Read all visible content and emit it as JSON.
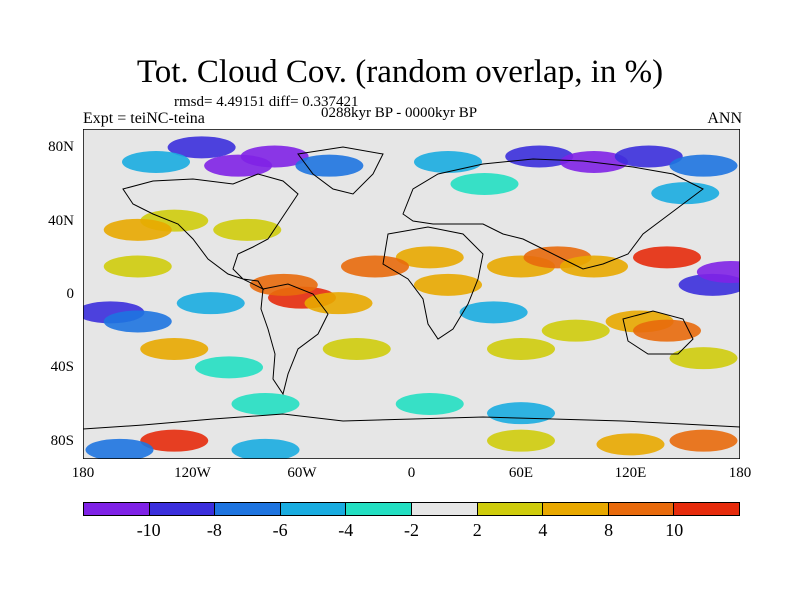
{
  "figure": {
    "title": "Tot. Cloud Cov. (random overlap, in %)",
    "stats": "rmsd= 4.49151 diff= 0.337421",
    "experiment": "Expt = teiNC-teina",
    "period": "0288kyr BP - 0000kyr BP",
    "season": "ANN"
  },
  "map": {
    "lat_ticks": [
      "80N",
      "40N",
      "0",
      "40S",
      "80S"
    ],
    "lon_ticks": [
      "180",
      "120W",
      "60W",
      "0",
      "60E",
      "120E",
      "180"
    ]
  },
  "colorbar": {
    "colors": [
      "#7f22e6",
      "#3b2fdc",
      "#1e74e0",
      "#19ace0",
      "#23dfc2",
      "#e6e6e6",
      "#cfcc0c",
      "#e8a800",
      "#e86a0c",
      "#e62b0c"
    ],
    "labels": [
      "-10",
      "-8",
      "-6",
      "-4",
      "-2",
      "2",
      "4",
      "8",
      "10"
    ]
  },
  "anomaly_patches": [
    {
      "lon": -95,
      "lat": 70,
      "level": 0
    },
    {
      "lon": -115,
      "lat": 80,
      "level": 1
    },
    {
      "lon": -75,
      "lat": 75,
      "level": 0
    },
    {
      "lon": -45,
      "lat": 70,
      "level": 2
    },
    {
      "lon": -140,
      "lat": 72,
      "level": 3
    },
    {
      "lon": 20,
      "lat": 72,
      "level": 3
    },
    {
      "lon": 70,
      "lat": 75,
      "level": 1
    },
    {
      "lon": 100,
      "lat": 72,
      "level": 0
    },
    {
      "lon": 130,
      "lat": 75,
      "level": 1
    },
    {
      "lon": 160,
      "lat": 70,
      "level": 2
    },
    {
      "lon": 40,
      "lat": 60,
      "level": 4
    },
    {
      "lon": 150,
      "lat": 55,
      "level": 3
    },
    {
      "lon": -130,
      "lat": 40,
      "level": 6
    },
    {
      "lon": -150,
      "lat": 35,
      "level": 7
    },
    {
      "lon": -90,
      "lat": 35,
      "level": 6
    },
    {
      "lon": 10,
      "lat": 20,
      "level": 7
    },
    {
      "lon": -20,
      "lat": 15,
      "level": 8
    },
    {
      "lon": -60,
      "lat": -2,
      "level": 9
    },
    {
      "lon": -70,
      "lat": 5,
      "level": 8
    },
    {
      "lon": -40,
      "lat": -5,
      "level": 7
    },
    {
      "lon": 20,
      "lat": 5,
      "level": 7
    },
    {
      "lon": 60,
      "lat": 15,
      "level": 7
    },
    {
      "lon": 80,
      "lat": 20,
      "level": 8
    },
    {
      "lon": 100,
      "lat": 15,
      "level": 7
    },
    {
      "lon": 140,
      "lat": 20,
      "level": 9
    },
    {
      "lon": 165,
      "lat": 5,
      "level": 1
    },
    {
      "lon": 175,
      "lat": 12,
      "level": 0
    },
    {
      "lon": -165,
      "lat": -10,
      "level": 1
    },
    {
      "lon": -150,
      "lat": -15,
      "level": 2
    },
    {
      "lon": -110,
      "lat": -5,
      "level": 3
    },
    {
      "lon": -150,
      "lat": 15,
      "level": 6
    },
    {
      "lon": 45,
      "lat": -10,
      "level": 3
    },
    {
      "lon": 125,
      "lat": -15,
      "level": 7
    },
    {
      "lon": 140,
      "lat": -20,
      "level": 8
    },
    {
      "lon": -130,
      "lat": -30,
      "level": 7
    },
    {
      "lon": -30,
      "lat": -30,
      "level": 6
    },
    {
      "lon": 60,
      "lat": -30,
      "level": 6
    },
    {
      "lon": 90,
      "lat": -20,
      "level": 6
    },
    {
      "lon": 160,
      "lat": -35,
      "level": 6
    },
    {
      "lon": -100,
      "lat": -40,
      "level": 4
    },
    {
      "lon": -80,
      "lat": -60,
      "level": 4
    },
    {
      "lon": 10,
      "lat": -60,
      "level": 4
    },
    {
      "lon": 60,
      "lat": -65,
      "level": 3
    },
    {
      "lon": -130,
      "lat": -80,
      "level": 9
    },
    {
      "lon": -160,
      "lat": -85,
      "level": 2
    },
    {
      "lon": -80,
      "lat": -85,
      "level": 3
    },
    {
      "lon": 60,
      "lat": -80,
      "level": 6
    },
    {
      "lon": 120,
      "lat": -82,
      "level": 7
    },
    {
      "lon": 160,
      "lat": -80,
      "level": 8
    }
  ]
}
